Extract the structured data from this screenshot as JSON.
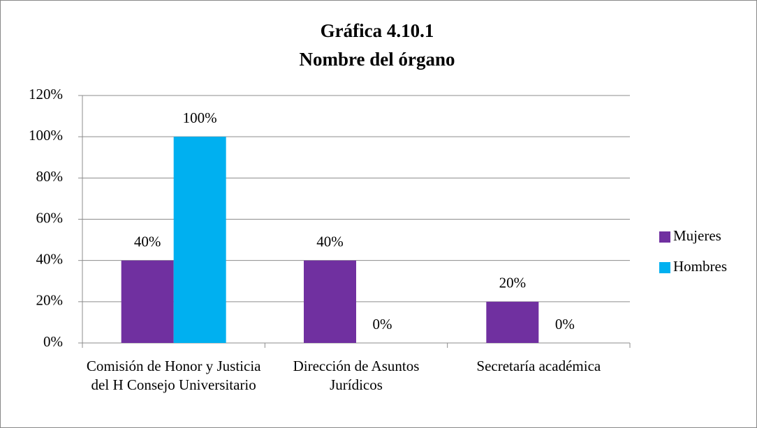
{
  "chart_data": {
    "type": "bar",
    "title": "Gráfica 4.10.1",
    "subtitle": "Nombre del órgano",
    "categories": [
      "Comisión de Honor y Justicia del H Consejo Universitario",
      "Dirección de Asuntos Jurídicos",
      "Secretaría académica"
    ],
    "series": [
      {
        "name": "Mujeres",
        "color": "#7030a0",
        "values": [
          40,
          40,
          20
        ],
        "value_labels": [
          "40%",
          "40%",
          "20%"
        ]
      },
      {
        "name": "Hombres",
        "color": "#00b0f0",
        "values": [
          100,
          0,
          0
        ],
        "value_labels": [
          "100%",
          "0%",
          "0%"
        ]
      }
    ],
    "ylim": [
      0,
      120
    ],
    "yticks": [
      {
        "value": 0,
        "label": "0%"
      },
      {
        "value": 20,
        "label": "20%"
      },
      {
        "value": 40,
        "label": "40%"
      },
      {
        "value": 60,
        "label": "60%"
      },
      {
        "value": 80,
        "label": "80%"
      },
      {
        "value": 100,
        "label": "100%"
      },
      {
        "value": 120,
        "label": "120%"
      }
    ],
    "grid": true,
    "legend": "right"
  }
}
